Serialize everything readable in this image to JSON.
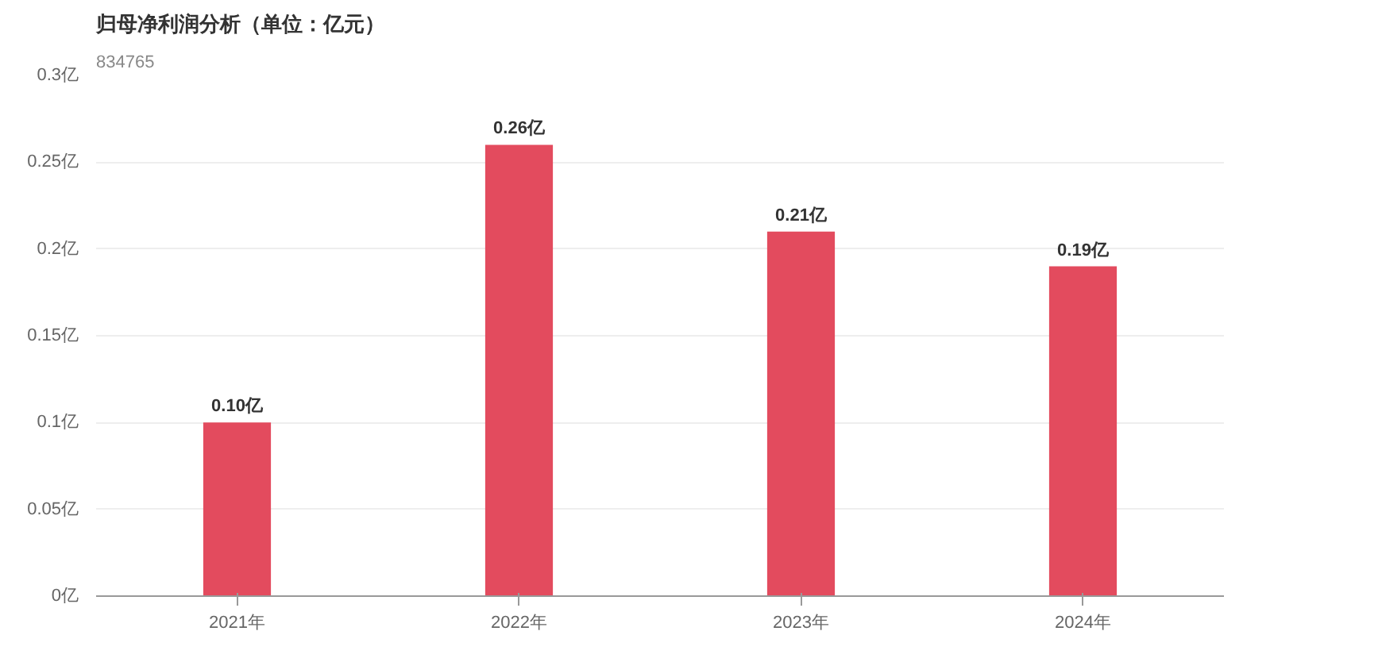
{
  "chart_data": {
    "type": "bar",
    "title": "归母净利润分析（单位：亿元）",
    "subtitle": "834765",
    "categories": [
      "2021年",
      "2022年",
      "2023年",
      "2024年"
    ],
    "values": [
      0.1,
      0.26,
      0.21,
      0.19
    ],
    "color": "#e34b5e",
    "value_labels": [
      "0.10亿",
      "0.26亿",
      "0.21亿",
      "0.19亿"
    ],
    "ylim": [
      0,
      0.3
    ],
    "yticks": [
      {
        "value": 0,
        "label": "0亿"
      },
      {
        "value": 0.05,
        "label": "0.05亿"
      },
      {
        "value": 0.1,
        "label": "0.1亿"
      },
      {
        "value": 0.15,
        "label": "0.15亿"
      },
      {
        "value": 0.2,
        "label": "0.2亿"
      },
      {
        "value": 0.25,
        "label": "0.25亿"
      },
      {
        "value": 0.3,
        "label": "0.3亿"
      }
    ],
    "grid": "y"
  }
}
